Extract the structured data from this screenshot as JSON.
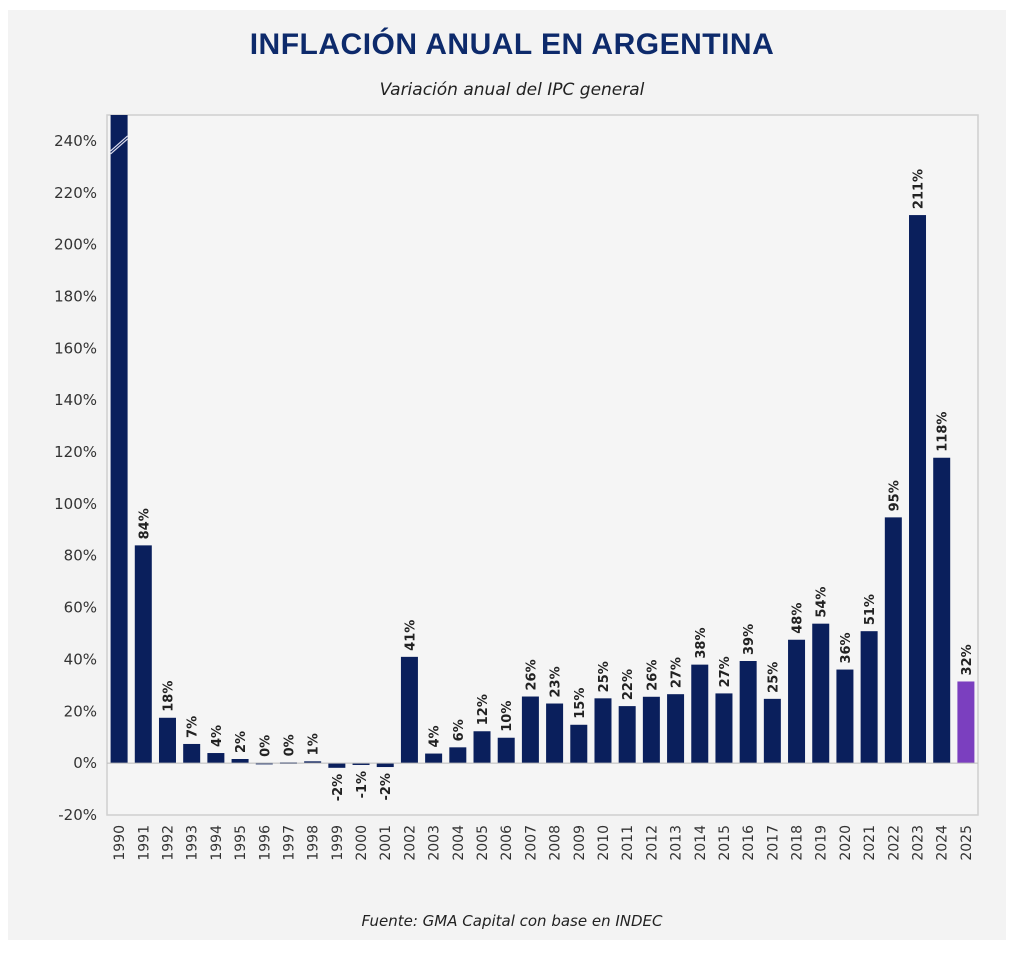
{
  "chart_data": {
    "type": "bar",
    "title": "INFLACIÓN ANUAL EN ARGENTINA",
    "subtitle": "Variación anual del IPC general",
    "source": "Fuente: GMA Capital con base en INDEC",
    "ylim": [
      -20,
      250
    ],
    "yticks": [
      -20,
      0,
      20,
      40,
      60,
      80,
      100,
      120,
      140,
      160,
      180,
      200,
      220,
      240
    ],
    "ytick_suffix": "%",
    "grid": false,
    "colors": {
      "bar": "#0a1f5c",
      "highlight": "#7b3fbf",
      "title": "#0d2a6b"
    },
    "highlight_category": "2025",
    "truncated_category": "1990",
    "categories": [
      "1990",
      "1991",
      "1992",
      "1993",
      "1994",
      "1995",
      "1996",
      "1997",
      "1998",
      "1999",
      "2000",
      "2001",
      "2002",
      "2003",
      "2004",
      "2005",
      "2006",
      "2007",
      "2008",
      "2009",
      "2010",
      "2011",
      "2012",
      "2013",
      "2014",
      "2015",
      "2016",
      "2017",
      "2018",
      "2019",
      "2020",
      "2021",
      "2022",
      "2023",
      "2024",
      "2025"
    ],
    "values": [
      null,
      84,
      17.5,
      7.4,
      3.9,
      1.6,
      0.1,
      0.3,
      0.7,
      -1.8,
      -0.7,
      -1.5,
      41,
      3.7,
      6.1,
      12.3,
      9.8,
      25.7,
      23,
      14.8,
      25,
      22,
      25.6,
      26.6,
      38,
      26.9,
      39.4,
      24.8,
      47.6,
      53.8,
      36.1,
      50.9,
      94.8,
      211.4,
      117.8,
      31.5
    ],
    "labels": [
      "",
      "84%",
      "18%",
      "7%",
      "4%",
      "2%",
      "0%",
      "0%",
      "1%",
      "-2%",
      "-1%",
      "-2%",
      "41%",
      "4%",
      "6%",
      "12%",
      "10%",
      "26%",
      "23%",
      "15%",
      "25%",
      "22%",
      "26%",
      "27%",
      "38%",
      "27%",
      "39%",
      "25%",
      "48%",
      "54%",
      "36%",
      "51%",
      "95%",
      "211%",
      "118%",
      "32%"
    ]
  }
}
